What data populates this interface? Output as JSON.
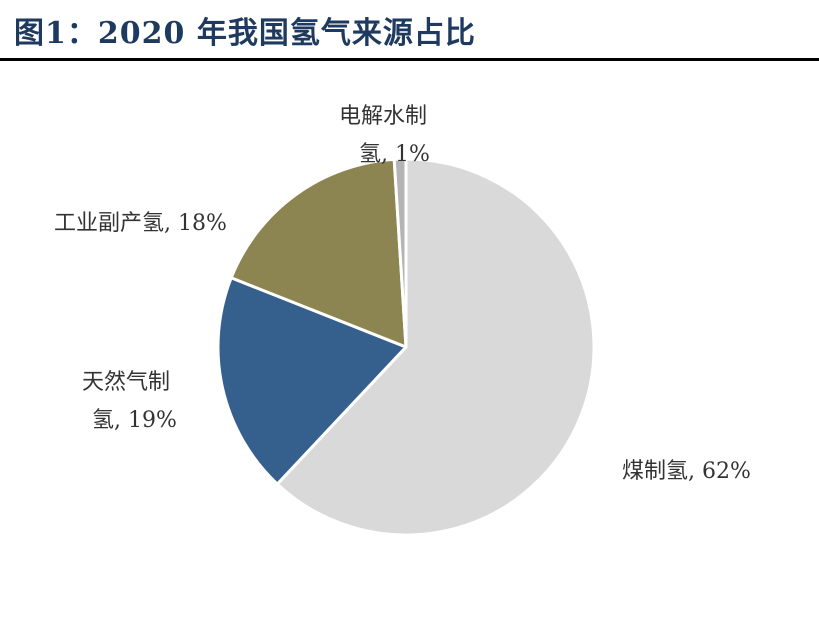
{
  "title": "图1：2020 年我国氢气来源占比",
  "chart_data": {
    "type": "pie",
    "categories": [
      "煤制氢",
      "天然气制氢",
      "工业副产氢",
      "电解水制氢"
    ],
    "values": [
      62,
      19,
      18,
      1
    ],
    "labels": [
      [
        "煤制氢, 62%"
      ],
      [
        "天然气制",
        "氢, 19%"
      ],
      [
        "工业副产氢, 18%"
      ],
      [
        "电解水制",
        "氢, 1%"
      ]
    ],
    "colors": [
      "#d9d9d9",
      "#355f8d",
      "#8c8551",
      "#b4b4b4"
    ],
    "start": "12 o'clock",
    "direction": "clockwise"
  }
}
